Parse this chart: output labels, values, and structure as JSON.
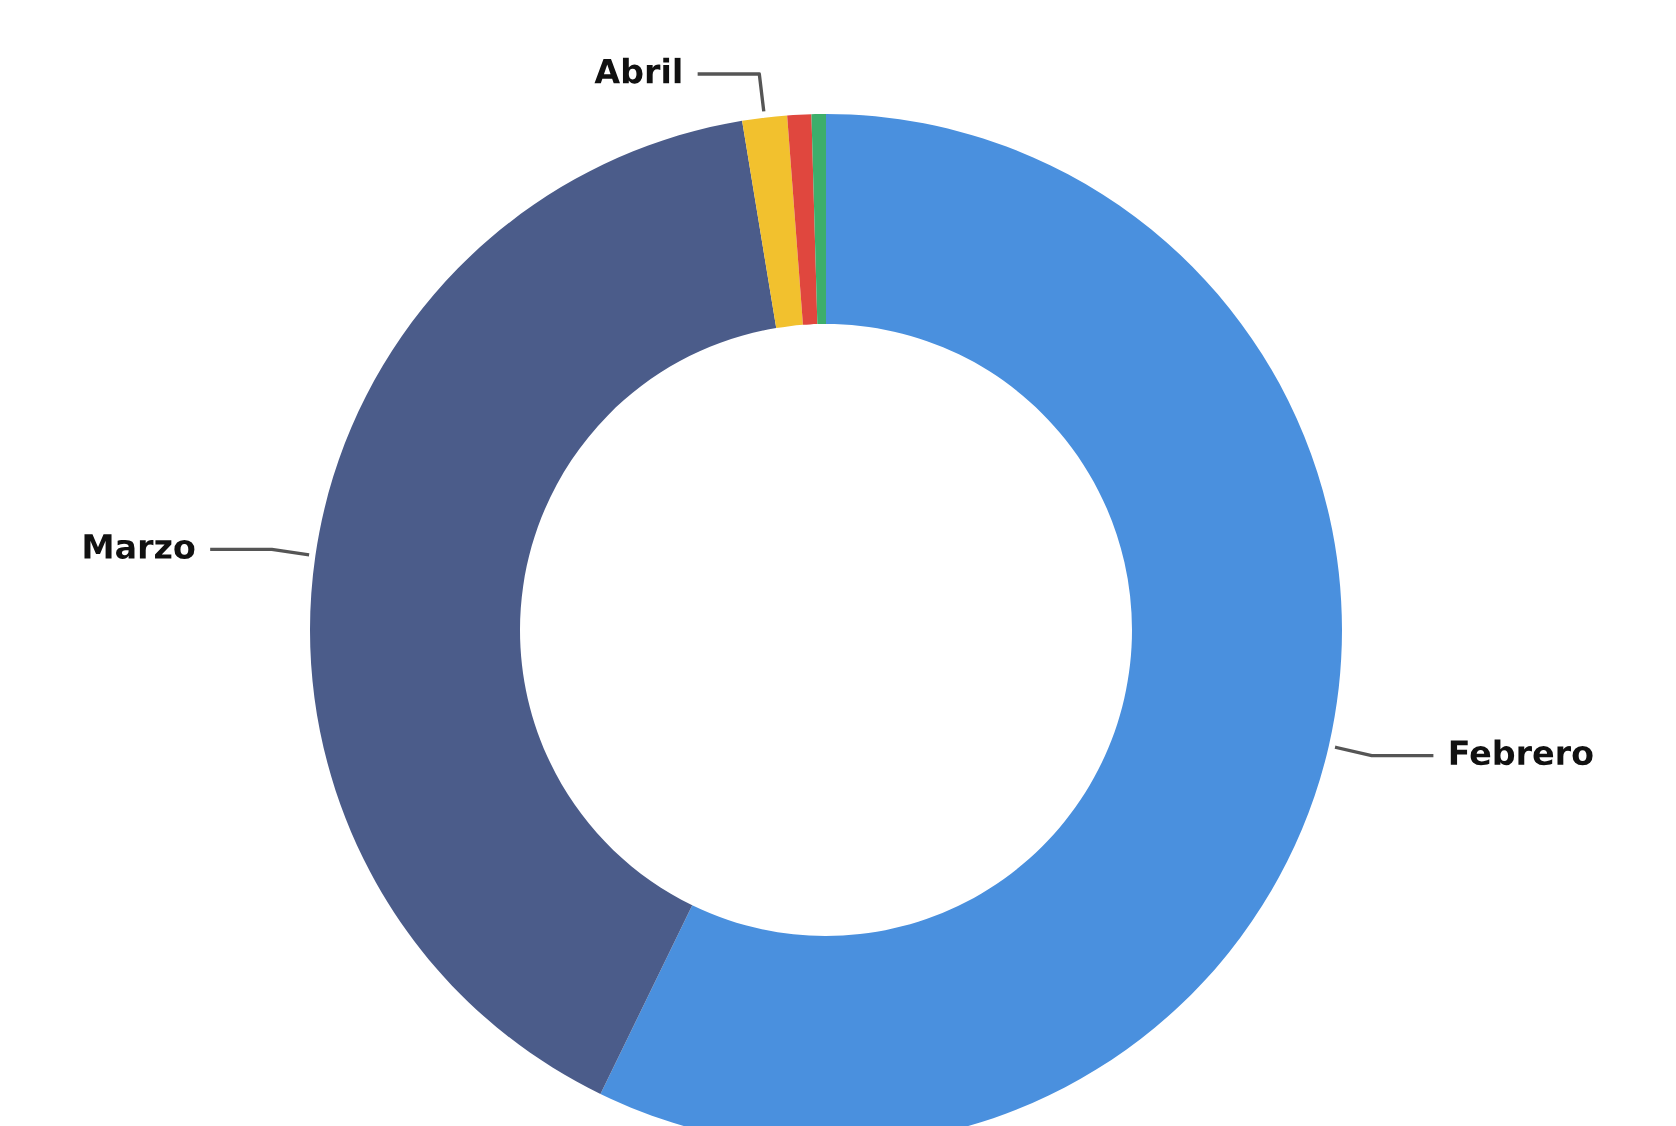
{
  "chart_data": {
    "type": "donut",
    "categories": [
      "Febrero",
      "Marzo",
      "Abril",
      null,
      null
    ],
    "values": [
      57.2,
      40.2,
      1.4,
      0.75,
      0.45
    ],
    "colors": [
      "#4a90de",
      "#4b5c8a",
      "#f2c12e",
      "#e0473e",
      "#3dae6b"
    ]
  }
}
